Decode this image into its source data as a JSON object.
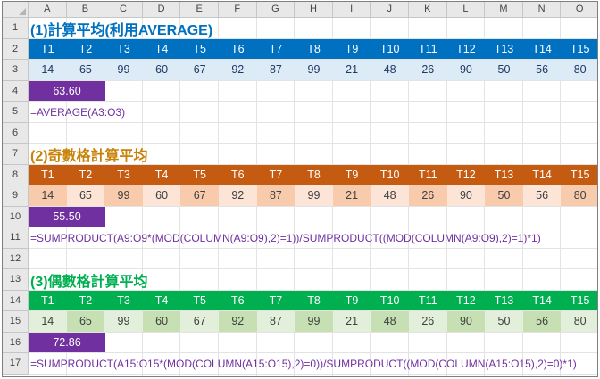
{
  "column_headers": [
    "A",
    "B",
    "C",
    "D",
    "E",
    "F",
    "G",
    "H",
    "I",
    "J",
    "K",
    "L",
    "M",
    "N",
    "O"
  ],
  "row_headers": [
    "1",
    "2",
    "3",
    "4",
    "5",
    "6",
    "7",
    "8",
    "9",
    "10",
    "11",
    "12",
    "13",
    "14",
    "15",
    "16",
    "17"
  ],
  "sections": [
    {
      "title": "(1)計算平均(利用AVERAGE)",
      "title_color": "#0070c0",
      "header_bg": "#0070c0",
      "labels": [
        "T1",
        "T2",
        "T3",
        "T4",
        "T5",
        "T6",
        "T7",
        "T8",
        "T9",
        "T10",
        "T11",
        "T12",
        "T13",
        "T14",
        "T15"
      ],
      "values": [
        "14",
        "65",
        "99",
        "60",
        "67",
        "92",
        "87",
        "99",
        "21",
        "48",
        "26",
        "90",
        "50",
        "56",
        "80"
      ],
      "value_bg": [
        "#ddebf7",
        "#ddebf7",
        "#ddebf7",
        "#ddebf7",
        "#ddebf7",
        "#ddebf7",
        "#ddebf7",
        "#ddebf7",
        "#ddebf7",
        "#ddebf7",
        "#ddebf7",
        "#ddebf7",
        "#ddebf7",
        "#ddebf7",
        "#ddebf7"
      ],
      "value_color": "#1f3864",
      "result": "63.60",
      "formula": "=AVERAGE(A3:O3)"
    },
    {
      "title": "(2)奇數格計算平均",
      "title_color": "#c8830a",
      "header_bg": "#c55a11",
      "labels": [
        "T1",
        "T2",
        "T3",
        "T4",
        "T5",
        "T6",
        "T7",
        "T8",
        "T9",
        "T10",
        "T11",
        "T12",
        "T13",
        "T14",
        "T15"
      ],
      "values": [
        "14",
        "65",
        "99",
        "60",
        "67",
        "92",
        "87",
        "99",
        "21",
        "48",
        "26",
        "90",
        "50",
        "56",
        "80"
      ],
      "value_bg": [
        "#f8cbad",
        "#fce4d6",
        "#f8cbad",
        "#fce4d6",
        "#f8cbad",
        "#fce4d6",
        "#f8cbad",
        "#fce4d6",
        "#f8cbad",
        "#fce4d6",
        "#f8cbad",
        "#fce4d6",
        "#f8cbad",
        "#fce4d6",
        "#f8cbad"
      ],
      "value_color": "#404040",
      "result": "55.50",
      "formula": "=SUMPRODUCT(A9:O9*(MOD(COLUMN(A9:O9),2)=1))/SUMPRODUCT((MOD(COLUMN(A9:O9),2)=1)*1)"
    },
    {
      "title": "(3)偶數格計算平均",
      "title_color": "#00b050",
      "header_bg": "#00b050",
      "labels": [
        "T1",
        "T2",
        "T3",
        "T4",
        "T5",
        "T6",
        "T7",
        "T8",
        "T9",
        "T10",
        "T11",
        "T12",
        "T13",
        "T14",
        "T15"
      ],
      "values": [
        "14",
        "65",
        "99",
        "60",
        "67",
        "92",
        "87",
        "99",
        "21",
        "48",
        "26",
        "90",
        "50",
        "56",
        "80"
      ],
      "value_bg": [
        "#e2efda",
        "#c6e0b4",
        "#e2efda",
        "#c6e0b4",
        "#e2efda",
        "#c6e0b4",
        "#e2efda",
        "#c6e0b4",
        "#e2efda",
        "#c6e0b4",
        "#e2efda",
        "#c6e0b4",
        "#e2efda",
        "#c6e0b4",
        "#e2efda"
      ],
      "value_color": "#404040",
      "result": "72.86",
      "formula": "=SUMPRODUCT(A15:O15*(MOD(COLUMN(A15:O15),2)=0))/SUMPRODUCT((MOD(COLUMN(A15:O15),2)=0)*1)"
    }
  ],
  "colors": {
    "result_bg": "#7030a0",
    "formula_text": "#7030a0"
  }
}
